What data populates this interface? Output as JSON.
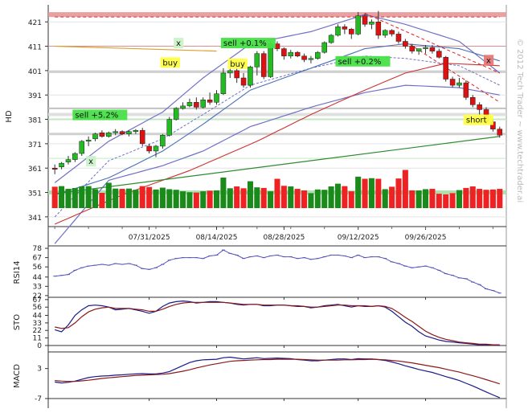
{
  "chart_data": {
    "type": "candlestick",
    "ticker": "HD",
    "watermark": "© 2012 Tech Trader ~ www.techtrader.ai",
    "price_axis": {
      "ticks": [
        341,
        351,
        361,
        371,
        381,
        391,
        401,
        411,
        421
      ],
      "range": [
        337,
        428
      ]
    },
    "date_labels": [
      {
        "label": "07/31/2025",
        "index": 14
      },
      {
        "label": "08/14/2025",
        "index": 24
      },
      {
        "label": "08/28/2025",
        "index": 34
      },
      {
        "label": "09/12/2025",
        "index": 45
      },
      {
        "label": "09/26/2025",
        "index": 55
      }
    ],
    "candles": [
      [
        361.0,
        362.5,
        358.5,
        360.5
      ],
      [
        361.5,
        363.5,
        360.5,
        363.0
      ],
      [
        363.5,
        366.0,
        362.5,
        364.5
      ],
      [
        364.5,
        367.5,
        363.5,
        367.0
      ],
      [
        367.0,
        372.5,
        366.0,
        372.0
      ],
      [
        372.0,
        374.0,
        370.0,
        372.5
      ],
      [
        373.0,
        375.5,
        372.0,
        375.0
      ],
      [
        375.5,
        376.5,
        373.5,
        374.0
      ],
      [
        374.0,
        376.0,
        373.5,
        375.5
      ],
      [
        375.5,
        377.0,
        374.5,
        376.0
      ],
      [
        376.0,
        376.5,
        374.5,
        375.0
      ],
      [
        375.0,
        376.5,
        374.0,
        376.0
      ],
      [
        376.0,
        377.0,
        375.0,
        376.5
      ],
      [
        376.5,
        377.5,
        370.0,
        371.0
      ],
      [
        370.0,
        371.0,
        367.0,
        368.0
      ],
      [
        368.0,
        370.5,
        365.5,
        370.0
      ],
      [
        370.0,
        375.0,
        369.0,
        374.5
      ],
      [
        374.5,
        382.0,
        374.0,
        381.0
      ],
      [
        381.0,
        386.0,
        380.5,
        385.5
      ],
      [
        385.5,
        388.0,
        385.0,
        386.5
      ],
      [
        386.5,
        389.5,
        386.0,
        388.0
      ],
      [
        388.0,
        390.0,
        385.0,
        386.0
      ],
      [
        386.0,
        390.0,
        385.5,
        389.0
      ],
      [
        389.0,
        392.0,
        387.0,
        388.0
      ],
      [
        388.0,
        393.0,
        387.0,
        391.5
      ],
      [
        391.5,
        402.0,
        391.0,
        400.0
      ],
      [
        400.0,
        403.0,
        398.0,
        401.0
      ],
      [
        401.0,
        403.0,
        396.0,
        398.0
      ],
      [
        398.0,
        400.0,
        394.0,
        395.0
      ],
      [
        395.0,
        403.0,
        394.0,
        402.5
      ],
      [
        402.5,
        409.0,
        399.0,
        408.0
      ],
      [
        408.0,
        409.0,
        397.5,
        398.5
      ],
      [
        398.5,
        413.0,
        398.0,
        412.0
      ],
      [
        412.0,
        413.0,
        409.0,
        410.0
      ],
      [
        410.0,
        410.5,
        405.5,
        407.0
      ],
      [
        407.0,
        409.5,
        406.0,
        408.5
      ],
      [
        408.5,
        409.0,
        406.5,
        407.0
      ],
      [
        407.0,
        408.0,
        404.5,
        405.5
      ],
      [
        405.5,
        407.0,
        404.0,
        406.0
      ],
      [
        406.0,
        409.0,
        405.5,
        408.5
      ],
      [
        408.5,
        413.0,
        408.0,
        412.5
      ],
      [
        412.5,
        416.0,
        412.0,
        415.5
      ],
      [
        415.5,
        420.0,
        415.0,
        419.0
      ],
      [
        419.0,
        420.0,
        416.0,
        418.0
      ],
      [
        418.0,
        418.5,
        414.0,
        416.0
      ],
      [
        416.0,
        425.0,
        415.5,
        423.5
      ],
      [
        423.5,
        424.5,
        419.0,
        420.0
      ],
      [
        420.0,
        422.0,
        418.0,
        421.0
      ],
      [
        421.0,
        425.5,
        414.0,
        415.5
      ],
      [
        415.5,
        418.0,
        414.5,
        417.5
      ],
      [
        417.5,
        418.0,
        415.0,
        416.0
      ],
      [
        416.0,
        417.0,
        412.0,
        413.0
      ],
      [
        413.0,
        414.0,
        410.0,
        411.0
      ],
      [
        411.0,
        412.0,
        408.0,
        409.0
      ],
      [
        409.0,
        410.0,
        407.5,
        410.0
      ],
      [
        410.0,
        411.5,
        408.0,
        410.5
      ],
      [
        410.5,
        411.5,
        408.0,
        409.0
      ],
      [
        409.0,
        410.0,
        406.0,
        406.5
      ],
      [
        406.5,
        407.0,
        396.5,
        397.5
      ],
      [
        397.5,
        398.5,
        394.0,
        395.0
      ],
      [
        395.0,
        398.0,
        394.0,
        396.0
      ],
      [
        396.0,
        397.0,
        389.0,
        390.0
      ],
      [
        390.0,
        391.0,
        386.0,
        387.0
      ],
      [
        387.0,
        388.0,
        383.0,
        385.0
      ],
      [
        385.0,
        386.0,
        379.0,
        380.0
      ],
      [
        380.0,
        381.0,
        376.0,
        377.0
      ],
      [
        377.0,
        378.0,
        373.5,
        374.5
      ]
    ],
    "volume": [
      0.7,
      0.72,
      0.63,
      0.66,
      0.71,
      0.72,
      0.62,
      0.5,
      0.83,
      0.64,
      0.63,
      0.64,
      0.6,
      0.72,
      0.69,
      0.61,
      0.67,
      0.62,
      0.6,
      0.55,
      0.52,
      0.51,
      0.55,
      0.57,
      0.58,
      1.0,
      0.65,
      0.71,
      0.65,
      0.88,
      0.68,
      0.66,
      0.55,
      0.96,
      0.73,
      0.71,
      0.63,
      0.58,
      0.49,
      0.61,
      0.6,
      0.71,
      0.8,
      0.72,
      0.55,
      1.03,
      0.96,
      0.98,
      0.96,
      0.62,
      0.7,
      0.97,
      1.25,
      0.58,
      0.58,
      0.62,
      0.63,
      0.47,
      0.45,
      0.49,
      0.59,
      0.66,
      0.71,
      0.63,
      0.6,
      0.61,
      0.63
    ],
    "bands": {
      "upper": [
        [
          0,
          355
        ],
        [
          8,
          372
        ],
        [
          16,
          384
        ],
        [
          22,
          398
        ],
        [
          29,
          412
        ],
        [
          38,
          417
        ],
        [
          46,
          424
        ],
        [
          52,
          420
        ],
        [
          60,
          413
        ],
        [
          66,
          400
        ]
      ],
      "middle": [
        [
          0,
          341
        ],
        [
          8,
          364
        ],
        [
          16,
          373
        ],
        [
          22,
          383
        ],
        [
          29,
          395
        ],
        [
          38,
          402
        ],
        [
          46,
          407
        ],
        [
          52,
          406
        ],
        [
          60,
          403
        ],
        [
          66,
          395
        ]
      ],
      "lower": [
        [
          0,
          330
        ],
        [
          8,
          356
        ],
        [
          16,
          362
        ],
        [
          22,
          368
        ],
        [
          29,
          378
        ],
        [
          38,
          386
        ],
        [
          46,
          392
        ],
        [
          52,
          395
        ],
        [
          60,
          394
        ],
        [
          66,
          391
        ]
      ],
      "ma_slow": [
        [
          0,
          338
        ],
        [
          10,
          350
        ],
        [
          20,
          360
        ],
        [
          30,
          372
        ],
        [
          38,
          383
        ],
        [
          46,
          393
        ],
        [
          52,
          400
        ],
        [
          58,
          404
        ],
        [
          66,
          403
        ]
      ],
      "ma_fast": [
        [
          0,
          350
        ],
        [
          8,
          357
        ],
        [
          16,
          368
        ],
        [
          22,
          379
        ],
        [
          29,
          393
        ],
        [
          38,
          402
        ],
        [
          46,
          410
        ],
        [
          52,
          412
        ],
        [
          60,
          410
        ],
        [
          66,
          405
        ]
      ]
    },
    "trendlines": {
      "top_red": [
        [
          0,
          423.0
        ],
        [
          66,
          423.0
        ]
      ],
      "orange": [
        [
          0,
          411.0
        ],
        [
          24,
          409.0
        ]
      ],
      "support_green": [
        [
          0,
          350.5
        ],
        [
          66,
          374.0
        ]
      ],
      "down_red_1": [
        [
          46,
          424.5
        ],
        [
          66,
          400
        ]
      ],
      "down_red_2": [
        [
          52,
          413
        ],
        [
          66,
          388
        ]
      ],
      "pink_top": [
        [
          0,
          424.5
        ],
        [
          66,
          424.5
        ]
      ]
    },
    "hlines": [
      {
        "price": 424.0,
        "color": "#e89696",
        "width": 6
      },
      {
        "price": 385.5,
        "color": "#bbbbbb",
        "width": 2
      },
      {
        "price": 383.0,
        "color": "#dddddd",
        "width": 4
      },
      {
        "price": 381.0,
        "color": "#bde8bd",
        "width": 2
      },
      {
        "price": 375.0,
        "color": "#cccccc",
        "width": 3
      },
      {
        "price": 365.0,
        "color": "#bde8bd",
        "width": 1
      },
      {
        "price": 351.0,
        "color": "#a6e0a6",
        "width": 5
      },
      {
        "price": 400.5,
        "color": "#cccccc",
        "width": 3
      },
      {
        "price": 411.0,
        "color": "#dd8888",
        "width": 1
      }
    ],
    "annotations": [
      {
        "text": "sell +5.2%",
        "index": 3,
        "price": 382.0,
        "bg": "#47e047",
        "fg": "#111"
      },
      {
        "text": "x",
        "index": 5,
        "price": 363.0,
        "bg": "#c9f2c9",
        "fg": "#111"
      },
      {
        "text": "x",
        "index": 18,
        "price": 411.5,
        "bg": "#c9f2c9",
        "fg": "#111"
      },
      {
        "text": "buy",
        "index": 16,
        "price": 403.5,
        "bg": "#ffff44",
        "fg": "#111"
      },
      {
        "text": "sell +0.1%",
        "index": 25,
        "price": 411.5,
        "bg": "#47e047",
        "fg": "#111"
      },
      {
        "text": "buy",
        "index": 26,
        "price": 403.0,
        "bg": "#ffff44",
        "fg": "#111"
      },
      {
        "text": "sell +0.2%",
        "index": 42,
        "price": 404.0,
        "bg": "#47e047",
        "fg": "#111"
      },
      {
        "text": "x",
        "index": 64,
        "price": 404.5,
        "bg": "#e77777",
        "fg": "#111"
      },
      {
        "text": "short",
        "index": 61,
        "price": 380.0,
        "bg": "#ffff44",
        "fg": "#111"
      }
    ],
    "indicators": [
      {
        "name": "RSI14",
        "ticks": [
          22,
          33,
          44,
          56,
          67,
          78
        ],
        "range": [
          20,
          79
        ],
        "values": [
          45,
          46,
          47,
          52,
          55,
          57,
          58,
          59,
          58,
          60,
          59,
          60,
          58,
          54,
          53,
          55,
          59,
          64,
          66,
          67,
          67,
          67,
          66,
          69,
          70,
          76,
          72,
          70,
          66,
          68,
          69,
          67,
          69,
          70,
          68,
          68,
          66,
          67,
          65,
          66,
          68,
          70,
          70,
          69,
          67,
          70,
          67,
          68,
          68,
          66,
          62,
          60,
          57,
          55,
          56,
          57,
          55,
          52,
          48,
          46,
          43,
          42,
          38,
          35,
          30,
          28,
          25
        ]
      },
      {
        "name": "STO",
        "ticks": [
          0,
          11,
          22,
          33,
          44,
          56,
          67
        ],
        "range": [
          0,
          68
        ],
        "k": [
          23,
          20,
          30,
          44,
          52,
          58,
          59,
          58,
          56,
          52,
          53,
          54,
          52,
          50,
          47,
          50,
          57,
          62,
          64,
          65,
          64,
          62,
          63,
          64,
          64,
          63,
          62,
          60,
          59,
          60,
          60,
          58,
          58,
          59,
          59,
          58,
          57,
          57,
          55,
          56,
          58,
          59,
          60,
          58,
          56,
          58,
          57,
          57,
          58,
          56,
          50,
          42,
          34,
          28,
          20,
          14,
          11,
          8,
          6,
          5,
          4,
          3,
          2,
          1,
          1,
          1,
          0
        ],
        "d": [
          27,
          25,
          26,
          33,
          42,
          49,
          53,
          55,
          56,
          54,
          54,
          54,
          53,
          52,
          50,
          50,
          53,
          57,
          60,
          62,
          63,
          63,
          63,
          63,
          63,
          63,
          62,
          61,
          60,
          60,
          60,
          59,
          59,
          59,
          59,
          58,
          58,
          57,
          56,
          56,
          57,
          58,
          59,
          59,
          58,
          58,
          58,
          57,
          58,
          57,
          54,
          48,
          41,
          35,
          28,
          21,
          16,
          12,
          9,
          7,
          5,
          4,
          3,
          2,
          2,
          1,
          1
        ]
      },
      {
        "name": "MACD",
        "ticks": [
          -7,
          3
        ],
        "range": [
          -7,
          8
        ],
        "macd": [
          -1.5,
          -1.8,
          -1.6,
          -1.2,
          -0.6,
          0.0,
          0.3,
          0.5,
          0.6,
          0.8,
          0.9,
          1.1,
          1.2,
          1.3,
          1.2,
          1.2,
          1.5,
          2.0,
          3.0,
          4.0,
          5.0,
          5.6,
          5.9,
          6.0,
          6.1,
          6.6,
          6.8,
          6.5,
          6.2,
          6.4,
          6.6,
          6.3,
          6.4,
          6.5,
          6.4,
          6.3,
          6.0,
          5.8,
          5.6,
          5.6,
          5.8,
          6.0,
          6.2,
          6.2,
          6.0,
          6.3,
          6.2,
          6.2,
          6.0,
          5.7,
          5.2,
          4.6,
          3.9,
          3.3,
          2.7,
          2.2,
          1.7,
          1.0,
          0.3,
          -0.3,
          -1.0,
          -1.9,
          -2.8,
          -3.8,
          -4.8,
          -5.8,
          -6.7
        ],
        "signal": [
          -1.0,
          -1.2,
          -1.3,
          -1.3,
          -1.1,
          -0.9,
          -0.6,
          -0.3,
          -0.1,
          0.1,
          0.3,
          0.5,
          0.7,
          0.8,
          0.9,
          1.0,
          1.1,
          1.3,
          1.7,
          2.1,
          2.6,
          3.2,
          3.7,
          4.2,
          4.6,
          5.0,
          5.4,
          5.6,
          5.7,
          5.8,
          5.9,
          6.0,
          6.0,
          6.1,
          6.1,
          6.1,
          6.1,
          6.0,
          5.9,
          5.8,
          5.8,
          5.8,
          5.8,
          5.9,
          5.9,
          6.0,
          6.0,
          6.1,
          6.0,
          5.9,
          5.7,
          5.5,
          5.2,
          4.9,
          4.5,
          4.1,
          3.7,
          3.3,
          2.8,
          2.3,
          1.8,
          1.2,
          0.6,
          0.0,
          -0.7,
          -1.4,
          -2.1
        ]
      }
    ],
    "colors": {
      "up": "#22bb22",
      "down": "#dd1111",
      "vol_up": "#1a8a1a",
      "vol_down": "#ee2222",
      "band": "#7070c8",
      "ma_slow": "#cc3333",
      "ma_fast": "#4a70b8",
      "green_line": "#2d8a2d",
      "ind_line1": "#1a1a8a",
      "ind_line2": "#8a1a1a",
      "rsi_line": "#5555bb"
    }
  }
}
